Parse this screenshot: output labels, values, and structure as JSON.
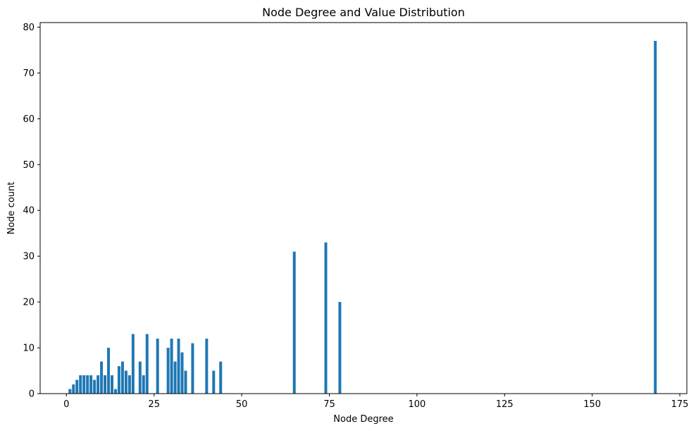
{
  "chart_data": {
    "type": "bar",
    "title": "Node Degree and Value Distribution",
    "xlabel": "Node Degree",
    "ylabel": "Node count",
    "xlim": [
      -7.5,
      177
    ],
    "ylim": [
      0,
      81
    ],
    "xticks": [
      0,
      25,
      50,
      75,
      100,
      125,
      150,
      175
    ],
    "yticks": [
      0,
      10,
      20,
      30,
      40,
      50,
      60,
      70,
      80
    ],
    "grid": false,
    "bar_color": "#1f77b4",
    "bar_width": 0.8,
    "x": [
      1,
      2,
      3,
      4,
      5,
      6,
      7,
      8,
      9,
      10,
      11,
      12,
      13,
      14,
      15,
      16,
      17,
      18,
      19,
      21,
      22,
      23,
      26,
      29,
      30,
      31,
      32,
      33,
      34,
      36,
      40,
      42,
      44,
      65,
      74,
      78,
      168
    ],
    "values": [
      1,
      2,
      3,
      4,
      4,
      4,
      4,
      3,
      4,
      7,
      4,
      10,
      4,
      1,
      6,
      7,
      5,
      4,
      13,
      7,
      4,
      13,
      12,
      10,
      12,
      7,
      12,
      9,
      5,
      11,
      12,
      5,
      7,
      31,
      33,
      20,
      77
    ]
  }
}
